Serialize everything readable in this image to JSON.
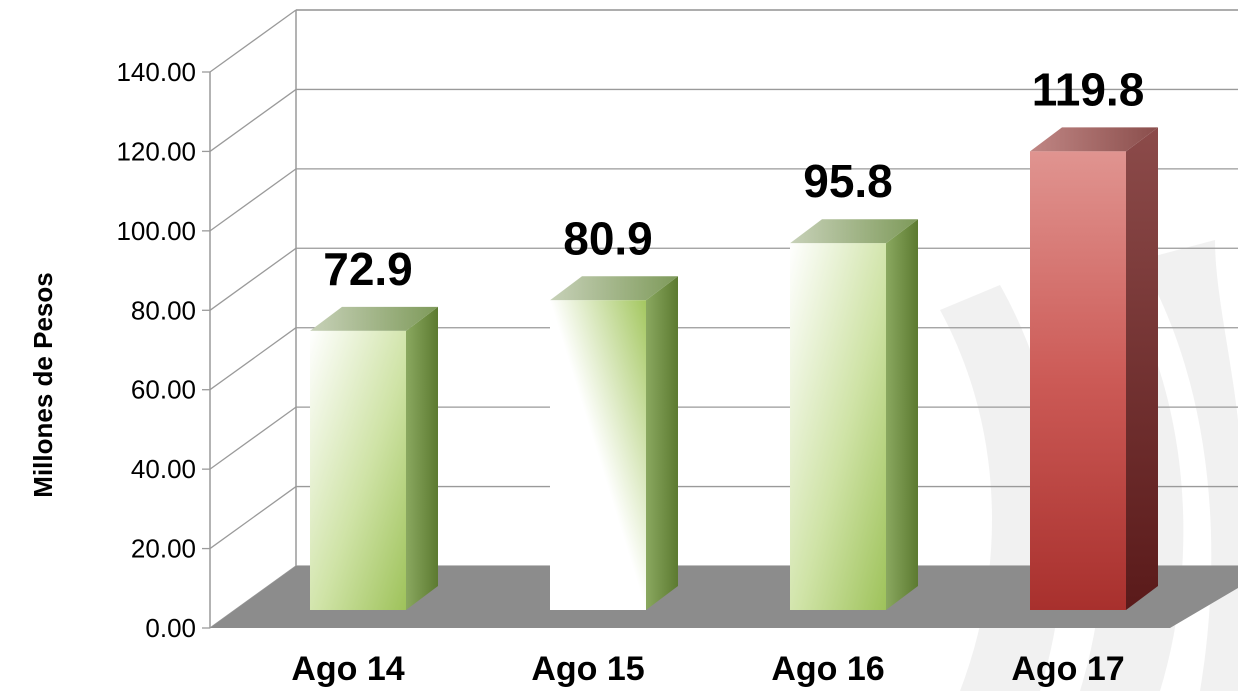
{
  "chart_data": {
    "type": "bar",
    "categories": [
      "Ago 14",
      "Ago 15",
      "Ago 16",
      "Ago 17"
    ],
    "values": [
      72.9,
      80.9,
      95.8,
      119.8
    ],
    "value_labels": [
      "72.9",
      "80.9",
      "95.8",
      "119.8"
    ],
    "ylabel": "Millones de Pesos",
    "xlabel": "",
    "title": "",
    "ylim": [
      0,
      140
    ],
    "yticks": [
      "0.00",
      "20.00",
      "40.00",
      "60.00",
      "80.00",
      "100.00",
      "120.00",
      "140.00"
    ],
    "three_d": true,
    "grid": true,
    "bar_colors": [
      "#a9c96a",
      "#a9c96a",
      "#a9c96a",
      "#c9504e"
    ],
    "floor_color": "#8c8c8c"
  }
}
